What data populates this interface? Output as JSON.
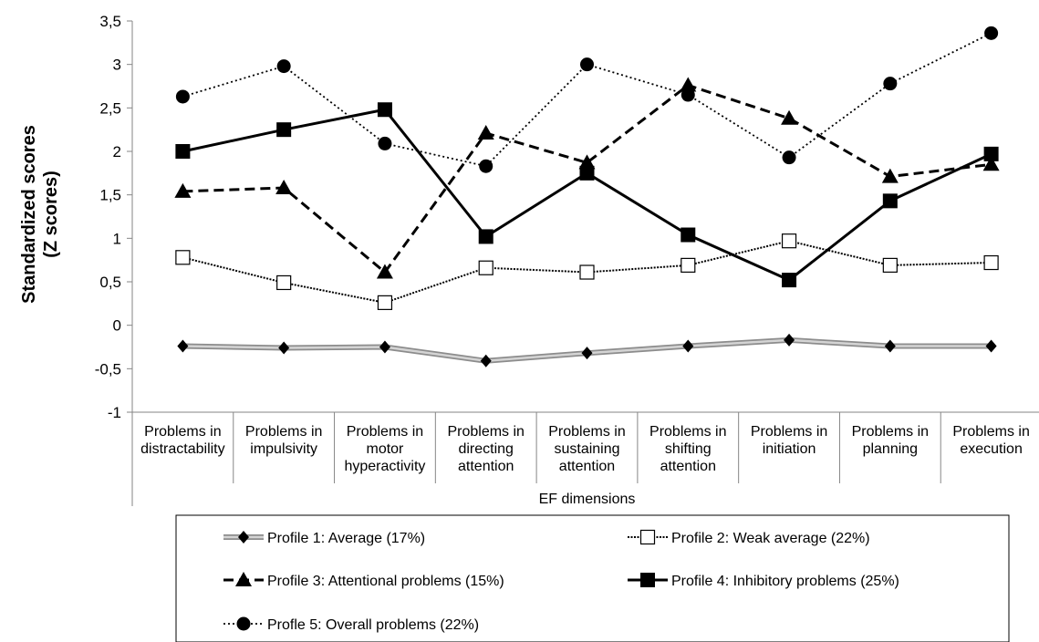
{
  "chart_data": {
    "type": "line",
    "ylabel_lines": [
      "Standardized scores",
      "(Z scores)"
    ],
    "xlabel": "EF dimensions",
    "ylim": [
      -1,
      3.5
    ],
    "y_ticks": [
      "3,5",
      "3",
      "2,5",
      "2",
      "1,5",
      "1",
      "0,5",
      "0",
      "-0,5",
      "-1"
    ],
    "y_tick_values": [
      3.5,
      3,
      2.5,
      2,
      1.5,
      1,
      0.5,
      0,
      -0.5,
      -1
    ],
    "categories": [
      [
        "Problems in",
        "distractability"
      ],
      [
        "Problems in",
        "impulsivity"
      ],
      [
        "Problems in",
        "motor",
        "hyperactivity"
      ],
      [
        "Problems in",
        "directing",
        "attention"
      ],
      [
        "Problems in",
        "sustaining",
        "attention"
      ],
      [
        "Problems in",
        "shifting",
        "attention"
      ],
      [
        "Problems in",
        "initiation"
      ],
      [
        "Problems in",
        "planning"
      ],
      [
        "Problems in",
        "execution"
      ]
    ],
    "series": [
      {
        "name": "Profile 1: Average (17%)",
        "values": [
          -0.24,
          -0.26,
          -0.25,
          -0.41,
          -0.32,
          -0.24,
          -0.17,
          -0.24,
          -0.24
        ],
        "line": "gray-double",
        "marker": "diamond",
        "color": "#999999"
      },
      {
        "name": "Profile 2: Weak average (22%)",
        "values": [
          0.78,
          0.49,
          0.26,
          0.66,
          0.61,
          0.69,
          0.97,
          0.69,
          0.72
        ],
        "line": "fine-dot",
        "marker": "square-open",
        "color": "#000000"
      },
      {
        "name": "Profile 3: Attentional problems (15%)",
        "values": [
          1.54,
          1.58,
          0.61,
          2.21,
          1.87,
          2.76,
          2.38,
          1.71,
          1.85
        ],
        "line": "dashed",
        "marker": "triangle",
        "color": "#000000"
      },
      {
        "name": "Profile 4: Inhibitory problems (25%)",
        "values": [
          2.0,
          2.25,
          2.48,
          1.02,
          1.75,
          1.04,
          0.52,
          1.43,
          1.97
        ],
        "line": "solid",
        "marker": "square",
        "color": "#000000"
      },
      {
        "name": "Profle 5: Overall problems (22%)",
        "values": [
          2.63,
          2.98,
          2.09,
          1.83,
          3.0,
          2.65,
          1.93,
          2.78,
          3.36
        ],
        "line": "dotted",
        "marker": "circle",
        "color": "#000000"
      }
    ],
    "legend_position": "bottom",
    "grid": false
  }
}
